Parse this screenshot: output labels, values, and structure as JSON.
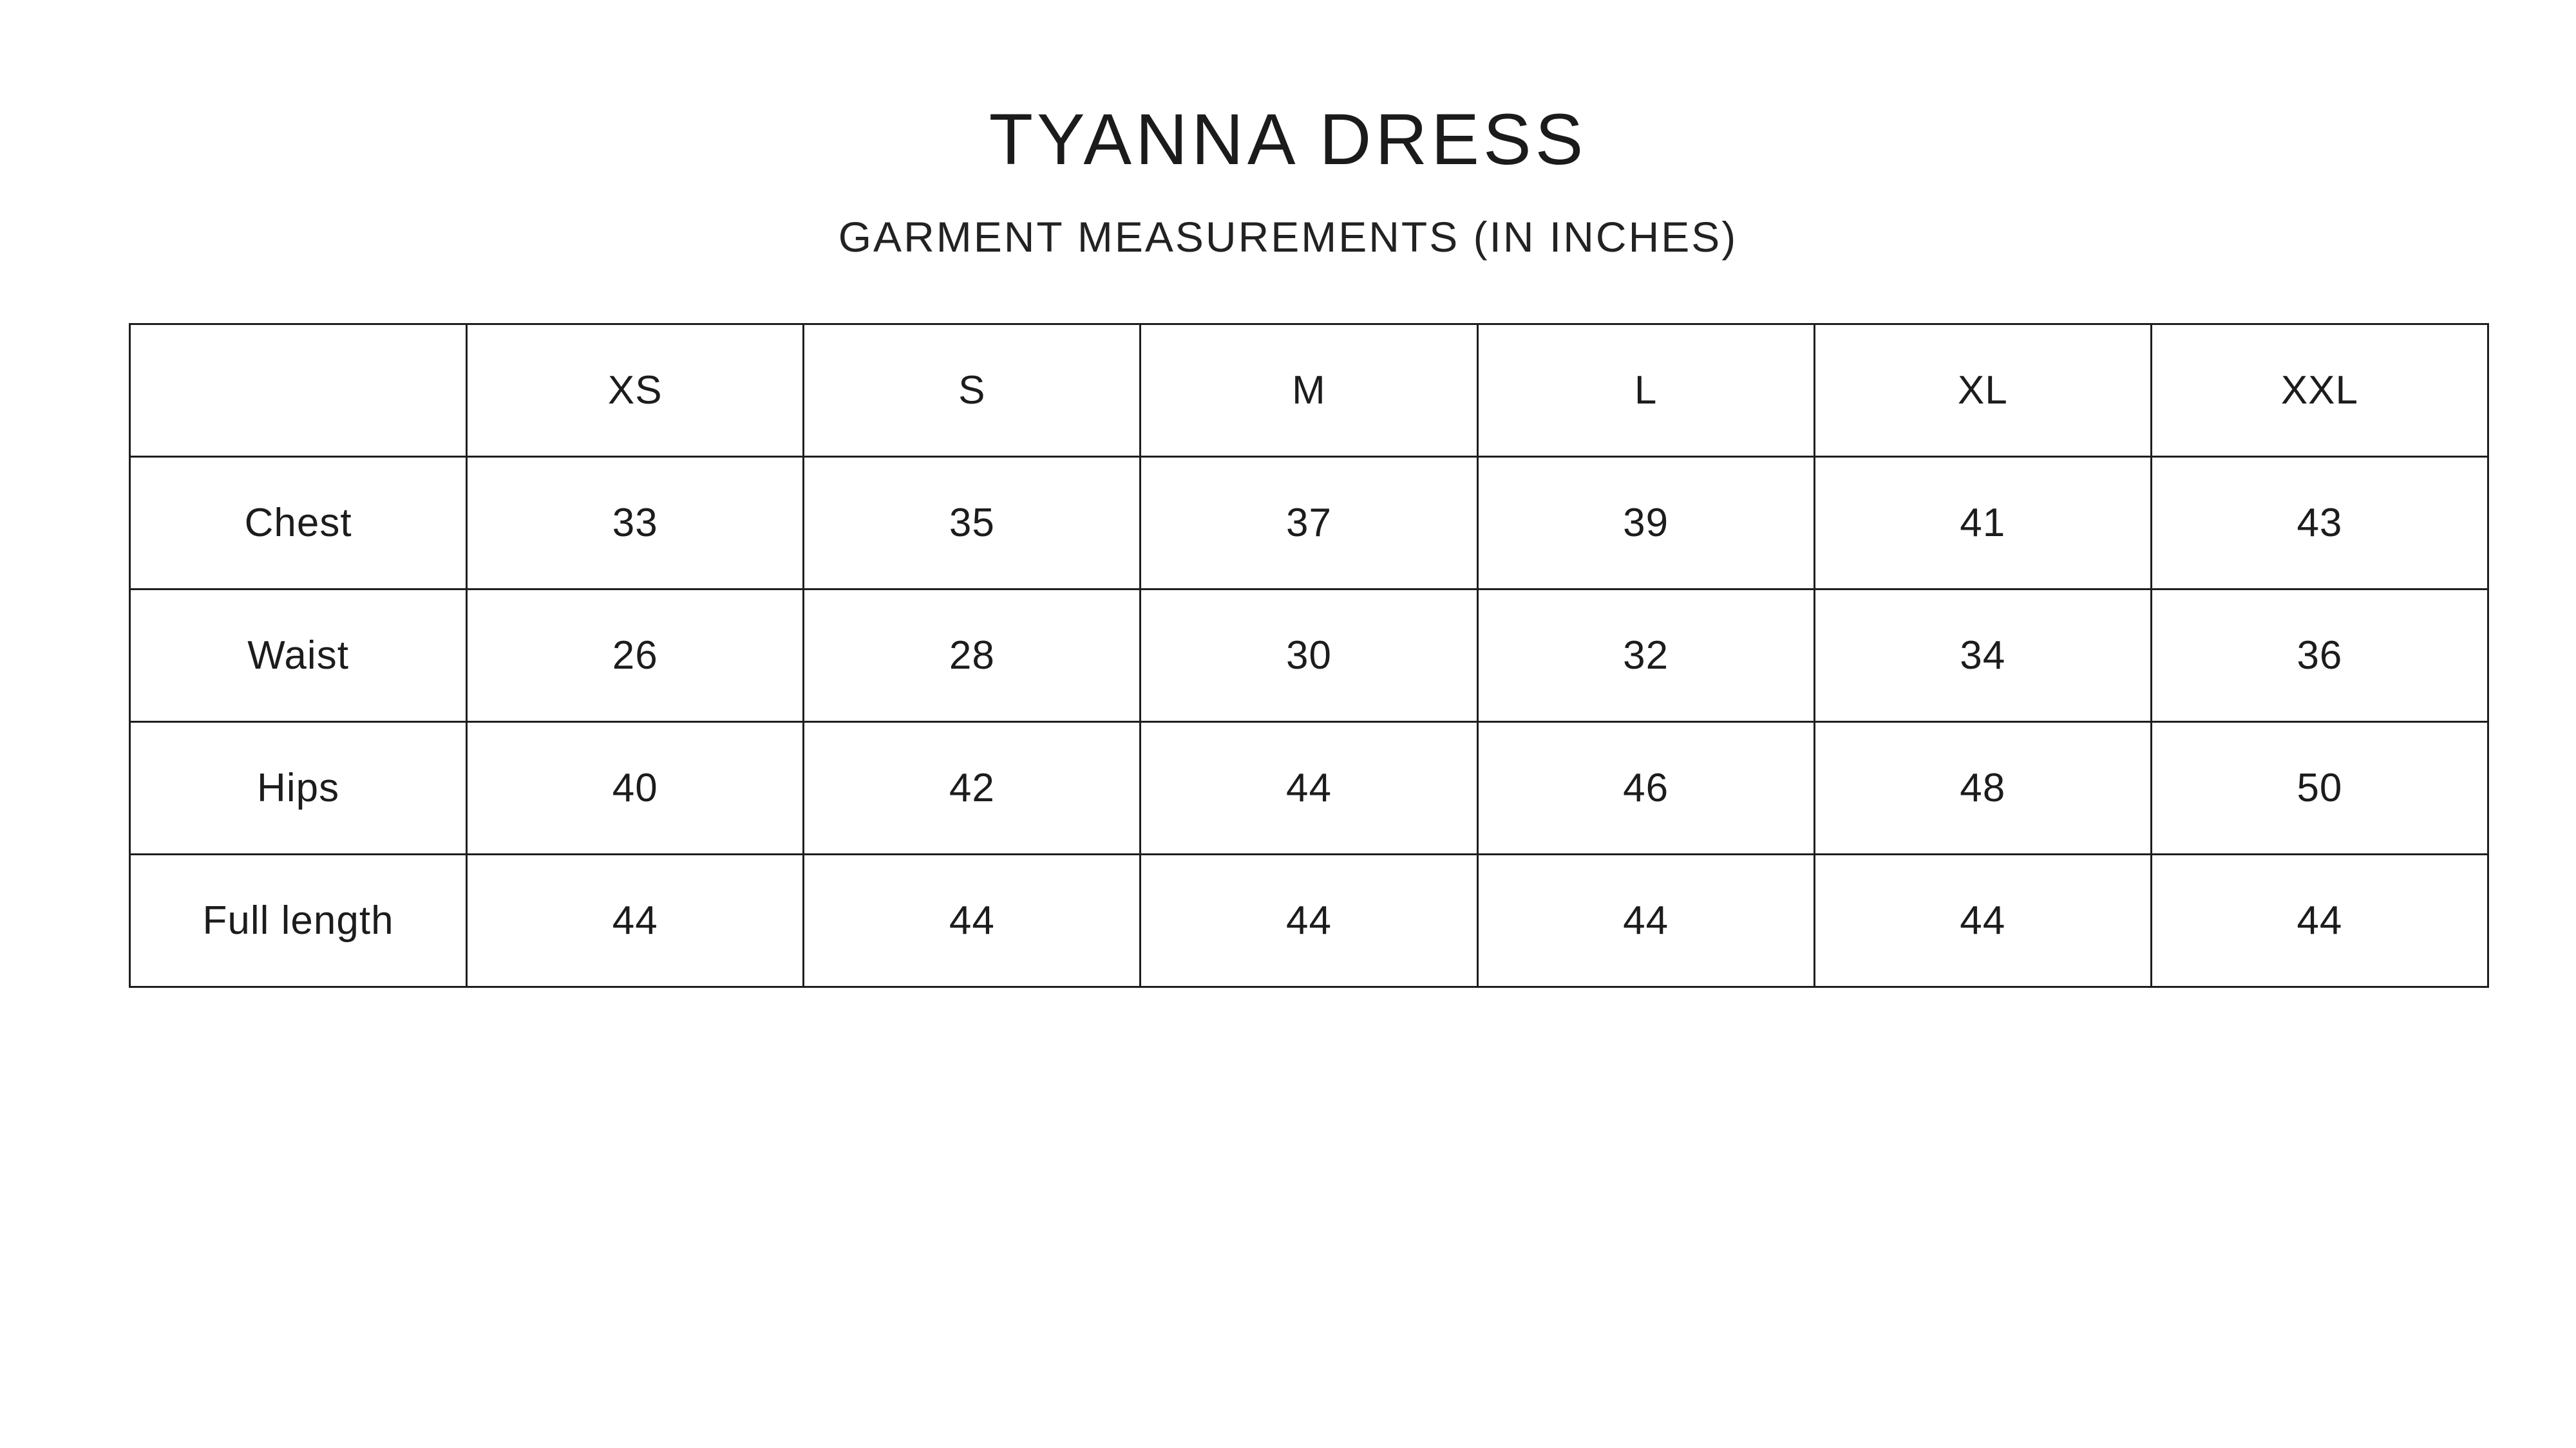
{
  "page": {
    "title": "TYANNA DRESS",
    "subtitle": "GARMENT MEASUREMENTS (IN INCHES)"
  },
  "table": {
    "corner_label": "",
    "sizes": [
      "XS",
      "S",
      "M",
      "L",
      "XL",
      "XXL"
    ],
    "rows": [
      {
        "label": "Chest",
        "values": [
          "33",
          "35",
          "37",
          "39",
          "41",
          "43"
        ]
      },
      {
        "label": "Waist",
        "values": [
          "26",
          "28",
          "30",
          "32",
          "34",
          "36"
        ]
      },
      {
        "label": "Hips",
        "values": [
          "40",
          "42",
          "44",
          "46",
          "48",
          "50"
        ]
      },
      {
        "label": "Full length",
        "values": [
          "44",
          "44",
          "44",
          "44",
          "44",
          "44"
        ]
      }
    ]
  },
  "colors": {
    "background": "#ffffff",
    "text": "#1c1c1c",
    "border": "#1e1e1e"
  },
  "chart_data": {
    "type": "table",
    "title": "TYANNA DRESS",
    "subtitle": "GARMENT MEASUREMENTS (IN INCHES)",
    "units": "inches",
    "columns": [
      "",
      "XS",
      "S",
      "M",
      "L",
      "XL",
      "XXL"
    ],
    "rows": [
      [
        "Chest",
        33,
        35,
        37,
        39,
        41,
        43
      ],
      [
        "Waist",
        26,
        28,
        30,
        32,
        34,
        36
      ],
      [
        "Hips",
        40,
        42,
        44,
        46,
        48,
        50
      ],
      [
        "Full length",
        44,
        44,
        44,
        44,
        44,
        44
      ]
    ]
  }
}
